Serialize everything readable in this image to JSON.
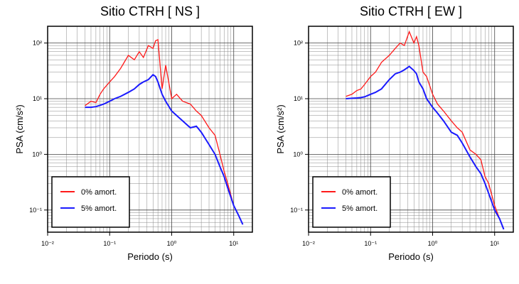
{
  "chart_data": [
    {
      "type": "line",
      "title": "Sitio CTRH [ NS ]",
      "xlabel": "Periodo (s)",
      "ylabel": "PSA (cm/s²)",
      "xscale": "log",
      "yscale": "log",
      "grid": true,
      "legend": "lower left",
      "xlim": [
        0.01,
        20
      ],
      "ylim": [
        0.04,
        200
      ],
      "xticks": [
        {
          "value": 0.01,
          "label": "10⁻²"
        },
        {
          "value": 0.1,
          "label": "10⁻¹"
        },
        {
          "value": 1,
          "label": "10⁰"
        },
        {
          "value": 10,
          "label": "10¹"
        }
      ],
      "yticks": [
        {
          "value": 0.1,
          "label": "10⁻¹"
        },
        {
          "value": 1,
          "label": "10⁰"
        },
        {
          "value": 10,
          "label": "10¹"
        },
        {
          "value": 100,
          "label": "10²"
        }
      ],
      "x": [
        0.04,
        0.05,
        0.06,
        0.07,
        0.08,
        0.1,
        0.12,
        0.15,
        0.2,
        0.25,
        0.3,
        0.35,
        0.42,
        0.5,
        0.55,
        0.6,
        0.7,
        0.8,
        1,
        1.2,
        1.5,
        2,
        2.5,
        3,
        4,
        5,
        6,
        7,
        8,
        10,
        12,
        14
      ],
      "series": [
        {
          "name": "0% amort.",
          "color": "#ff1a1a",
          "values": [
            7.5,
            9,
            8.5,
            12,
            15,
            20,
            25,
            35,
            60,
            50,
            70,
            55,
            90,
            80,
            110,
            115,
            15,
            40,
            10,
            12,
            9,
            8,
            6,
            5,
            3,
            2.2,
            1,
            0.5,
            0.3,
            0.12,
            0.08,
            0.055
          ]
        },
        {
          "name": "5% amort.",
          "color": "#1a1aff",
          "values": [
            7,
            7,
            7.2,
            7.6,
            8,
            9,
            10,
            11,
            13,
            15,
            18,
            20,
            22,
            27,
            25,
            20,
            12,
            9,
            6,
            5,
            4,
            3,
            3.2,
            2.5,
            1.5,
            1,
            0.6,
            0.4,
            0.25,
            0.12,
            0.08,
            0.055
          ]
        }
      ]
    },
    {
      "type": "line",
      "title": "Sitio CTRH [ EW ]",
      "xlabel": "Periodo (s)",
      "ylabel": "PSA (cm/s²)",
      "xscale": "log",
      "yscale": "log",
      "grid": true,
      "legend": "lower left",
      "xlim": [
        0.01,
        20
      ],
      "ylim": [
        0.04,
        200
      ],
      "xticks": [
        {
          "value": 0.01,
          "label": "10⁻²"
        },
        {
          "value": 0.1,
          "label": "10⁻¹"
        },
        {
          "value": 1,
          "label": "10⁰"
        },
        {
          "value": 10,
          "label": "10¹"
        }
      ],
      "yticks": [
        {
          "value": 0.1,
          "label": "10⁻¹"
        },
        {
          "value": 1,
          "label": "10⁰"
        },
        {
          "value": 10,
          "label": "10¹"
        },
        {
          "value": 100,
          "label": "10²"
        }
      ],
      "x": [
        0.04,
        0.05,
        0.06,
        0.07,
        0.08,
        0.1,
        0.12,
        0.15,
        0.2,
        0.25,
        0.3,
        0.35,
        0.42,
        0.5,
        0.55,
        0.6,
        0.7,
        0.8,
        1,
        1.2,
        1.5,
        2,
        2.5,
        3,
        4,
        5,
        6,
        7,
        8,
        10,
        12,
        14
      ],
      "series": [
        {
          "name": "0% amort.",
          "color": "#ff1a1a",
          "values": [
            11,
            12,
            14,
            15,
            18,
            25,
            30,
            45,
            60,
            80,
            100,
            90,
            160,
            100,
            130,
            90,
            30,
            25,
            12,
            8,
            6,
            4,
            3,
            2.5,
            1.2,
            1,
            0.8,
            0.4,
            0.3,
            0.12,
            0.07,
            0.045
          ]
        },
        {
          "name": "5% amort.",
          "color": "#1a1aff",
          "values": [
            10,
            10.2,
            10.3,
            10.5,
            10.8,
            12,
            13,
            15,
            22,
            28,
            30,
            33,
            38,
            32,
            28,
            20,
            15,
            10,
            7,
            5.5,
            4,
            2.5,
            2.2,
            1.6,
            0.9,
            0.6,
            0.45,
            0.3,
            0.2,
            0.1,
            0.07,
            0.045
          ]
        }
      ]
    }
  ]
}
